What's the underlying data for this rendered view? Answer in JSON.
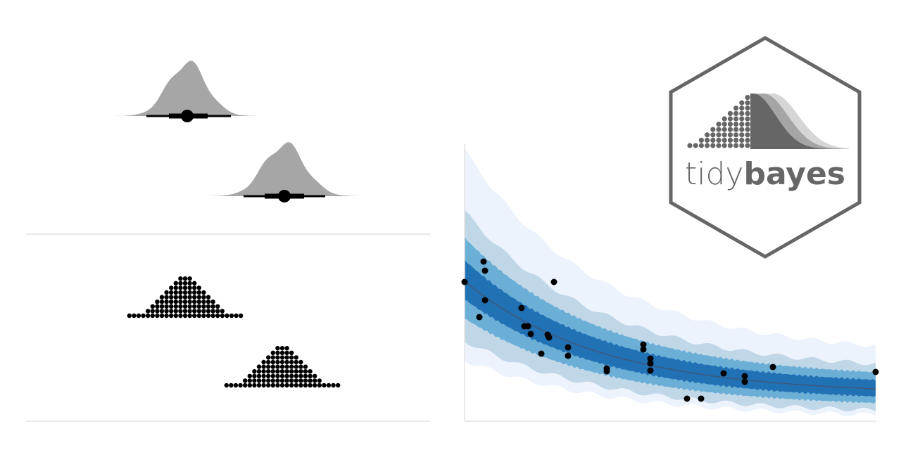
{
  "logo": {
    "text_light": "tidy",
    "text_bold": "bayes"
  }
}
